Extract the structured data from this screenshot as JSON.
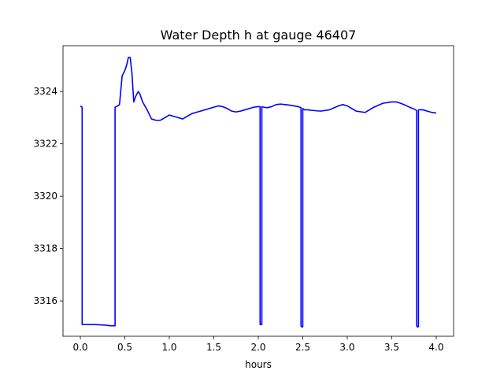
{
  "chart_data": {
    "type": "line",
    "title": "Water Depth h at gauge 46407",
    "xlabel": "hours",
    "ylabel": "",
    "xlim": [
      -0.195,
      4.195
    ],
    "ylim": [
      3314.65,
      3325.75
    ],
    "x_ticks": [
      0.0,
      0.5,
      1.0,
      1.5,
      2.0,
      2.5,
      3.0,
      3.5,
      4.0
    ],
    "x_tick_labels": [
      "0.0",
      "0.5",
      "1.0",
      "1.5",
      "2.0",
      "2.5",
      "3.0",
      "3.5",
      "4.0"
    ],
    "y_ticks": [
      3316,
      3318,
      3320,
      3322,
      3324
    ],
    "y_tick_labels": [
      "3316",
      "3318",
      "3320",
      "3322",
      "3324"
    ],
    "grid": false,
    "series": [
      {
        "color": "#0000ff",
        "x": [
          0.0,
          0.02,
          0.02,
          0.05,
          0.15,
          0.25,
          0.3,
          0.33,
          0.38,
          0.39,
          0.39,
          0.42,
          0.44,
          0.47,
          0.5,
          0.52,
          0.54,
          0.56,
          0.58,
          0.6,
          0.62,
          0.65,
          0.67,
          0.7,
          0.75,
          0.8,
          0.85,
          0.9,
          0.95,
          1.0,
          1.05,
          1.1,
          1.15,
          1.2,
          1.25,
          1.3,
          1.35,
          1.4,
          1.45,
          1.5,
          1.55,
          1.6,
          1.65,
          1.7,
          1.75,
          1.8,
          1.85,
          1.9,
          1.95,
          2.0,
          2.02,
          2.02,
          2.03,
          2.04,
          2.04,
          2.06,
          2.1,
          2.15,
          2.2,
          2.25,
          2.3,
          2.35,
          2.4,
          2.45,
          2.48,
          2.48,
          2.49,
          2.5,
          2.5,
          2.52,
          2.55,
          2.6,
          2.7,
          2.8,
          2.9,
          2.95,
          3.0,
          3.1,
          3.2,
          3.3,
          3.4,
          3.5,
          3.55,
          3.6,
          3.65,
          3.7,
          3.77,
          3.78,
          3.78,
          3.79,
          3.8,
          3.8,
          3.85,
          3.9,
          3.95,
          4.0
        ],
        "y": [
          3323.45,
          3323.4,
          3315.1,
          3315.1,
          3315.1,
          3315.08,
          3315.07,
          3315.05,
          3315.05,
          3315.05,
          3323.4,
          3323.45,
          3323.5,
          3324.6,
          3324.8,
          3325.0,
          3325.3,
          3325.3,
          3324.7,
          3323.6,
          3323.8,
          3324.0,
          3323.9,
          3323.6,
          3323.3,
          3322.95,
          3322.9,
          3322.9,
          3323.0,
          3323.1,
          3323.05,
          3323.0,
          3322.95,
          3323.05,
          3323.15,
          3323.2,
          3323.25,
          3323.3,
          3323.35,
          3323.4,
          3323.45,
          3323.42,
          3323.35,
          3323.25,
          3323.22,
          3323.25,
          3323.3,
          3323.35,
          3323.4,
          3323.42,
          3323.42,
          3315.1,
          3315.1,
          3315.1,
          3323.42,
          3323.4,
          3323.38,
          3323.42,
          3323.5,
          3323.52,
          3323.5,
          3323.48,
          3323.45,
          3323.42,
          3323.38,
          3315.05,
          3315.0,
          3315.02,
          3323.35,
          3323.3,
          3323.3,
          3323.28,
          3323.25,
          3323.3,
          3323.45,
          3323.5,
          3323.45,
          3323.25,
          3323.2,
          3323.4,
          3323.55,
          3323.6,
          3323.6,
          3323.55,
          3323.48,
          3323.4,
          3323.3,
          3323.25,
          3315.05,
          3315.0,
          3315.02,
          3323.3,
          3323.3,
          3323.25,
          3323.2,
          3323.18
        ]
      }
    ]
  }
}
